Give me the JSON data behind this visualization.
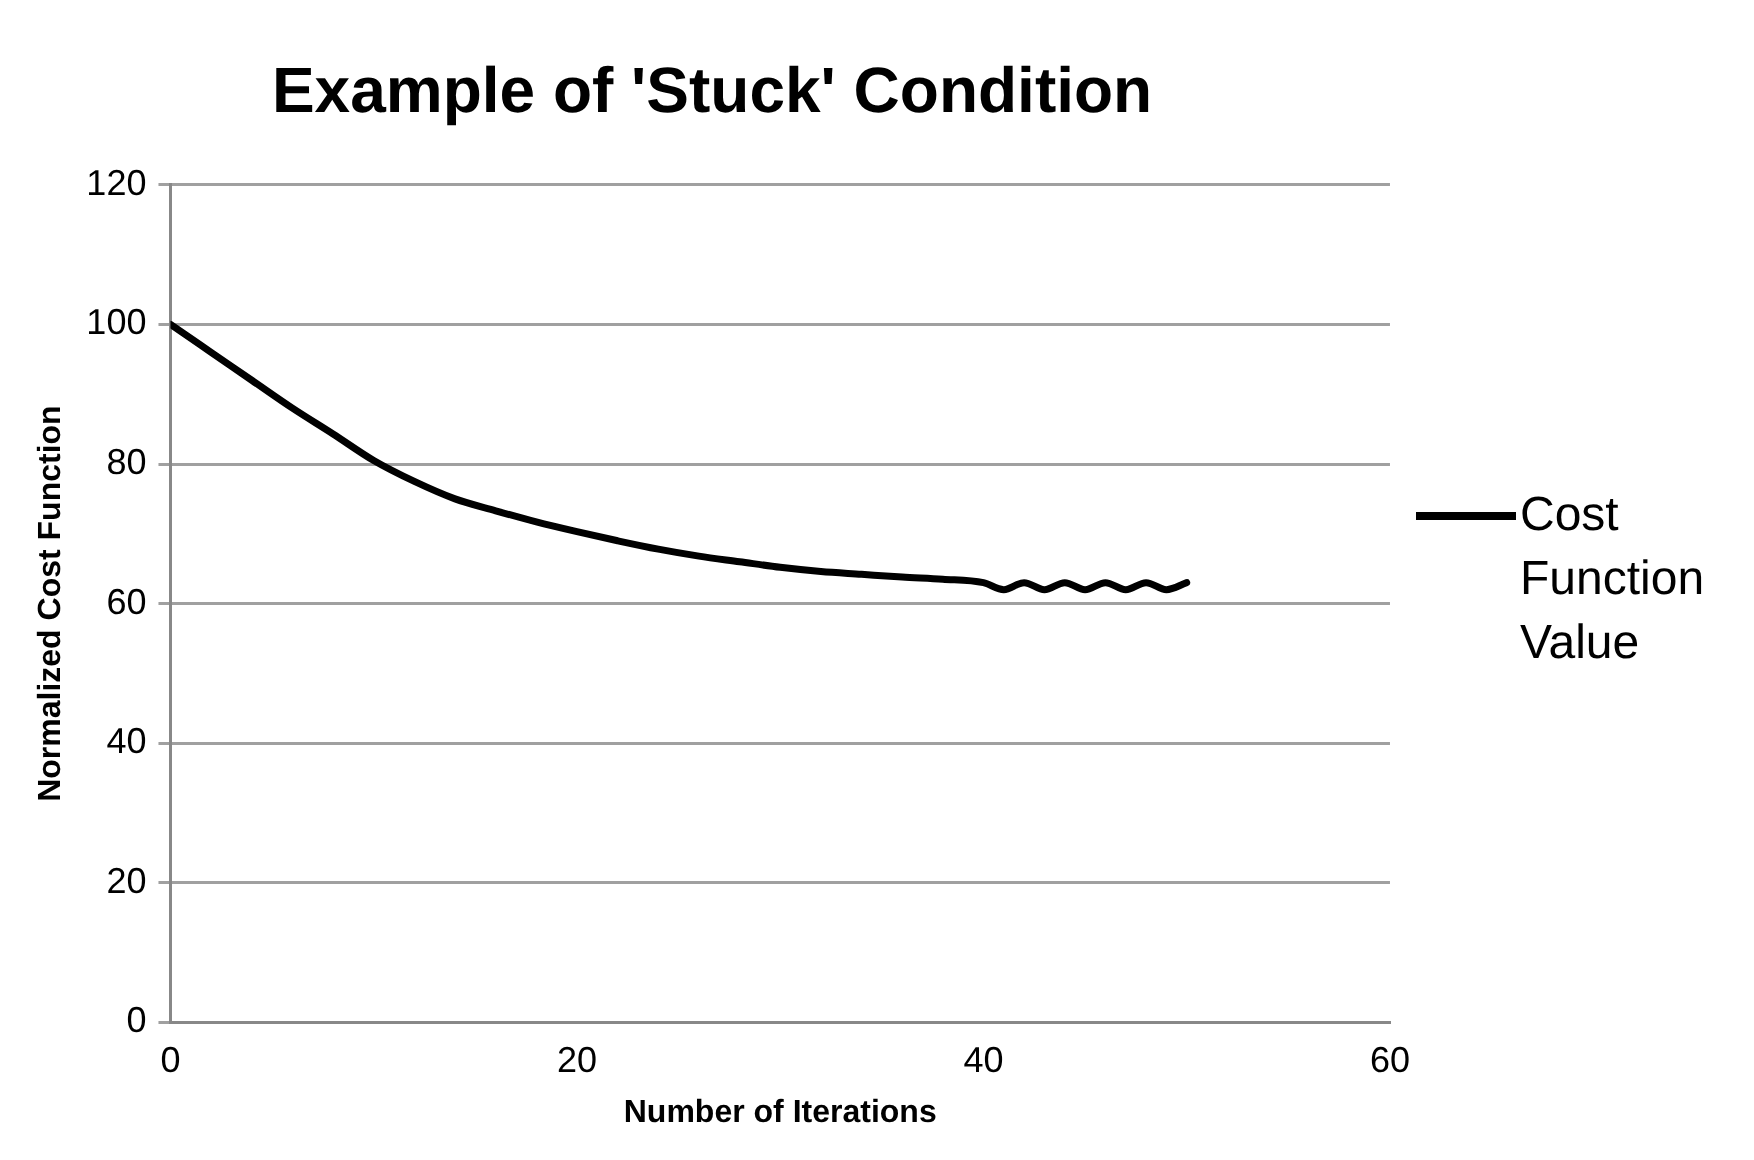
{
  "chart_data": {
    "type": "line",
    "title": "Example of 'Stuck' Condition",
    "xlabel": "Number of Iterations",
    "ylabel": "Normalized Cost Function",
    "x": [
      0,
      2,
      4,
      6,
      8,
      10,
      12,
      14,
      16,
      18,
      20,
      22,
      24,
      26,
      28,
      30,
      32,
      34,
      36,
      38,
      40,
      41,
      42,
      43,
      44,
      45,
      46,
      47,
      48,
      49,
      50
    ],
    "series": [
      {
        "name": "Cost Function Value",
        "color": "#000000",
        "values": [
          100,
          96,
          92,
          88,
          84.3,
          80.5,
          77.5,
          75,
          73.3,
          71.7,
          70.3,
          69,
          67.8,
          66.8,
          66,
          65.2,
          64.6,
          64.2,
          63.8,
          63.5,
          63,
          62,
          63,
          62,
          63,
          62,
          63,
          62,
          63,
          62,
          63
        ]
      }
    ],
    "xlim": [
      0,
      60
    ],
    "xticks": [
      0,
      20,
      40,
      60
    ],
    "ylim": [
      0,
      120
    ],
    "yticks": [
      0,
      20,
      40,
      60,
      80,
      100,
      120
    ],
    "grid": "y",
    "legend": "right",
    "marker": "none",
    "line_style": "solid"
  }
}
